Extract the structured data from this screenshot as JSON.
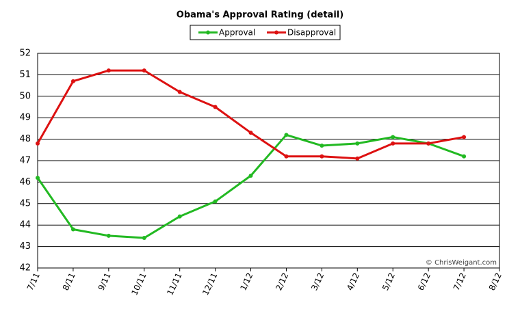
{
  "chart_data": {
    "type": "line",
    "title": "Obama's Approval Rating (detail)",
    "categories": [
      "7/11",
      "8/11",
      "9/11",
      "10/11",
      "11/11",
      "12/11",
      "1/12",
      "2/12",
      "3/12",
      "4/12",
      "5/12",
      "6/12",
      "7/12",
      "8/12"
    ],
    "series": [
      {
        "name": "Approval",
        "color": "#22b922",
        "values": [
          46.2,
          43.8,
          43.5,
          43.4,
          44.4,
          45.1,
          46.3,
          48.2,
          47.7,
          47.8,
          48.1,
          47.8,
          47.2,
          null
        ]
      },
      {
        "name": "Disapproval",
        "color": "#dd1111",
        "values": [
          47.8,
          50.7,
          51.2,
          51.2,
          50.2,
          49.5,
          48.3,
          47.2,
          47.2,
          47.1,
          47.8,
          47.8,
          48.1,
          null
        ]
      }
    ],
    "ylim": [
      42,
      52
    ],
    "yticks": [
      42,
      43,
      44,
      45,
      46,
      47,
      48,
      49,
      50,
      51,
      52
    ],
    "grid": true,
    "legend": "top",
    "annotation": "© ChrisWeigant.com"
  }
}
